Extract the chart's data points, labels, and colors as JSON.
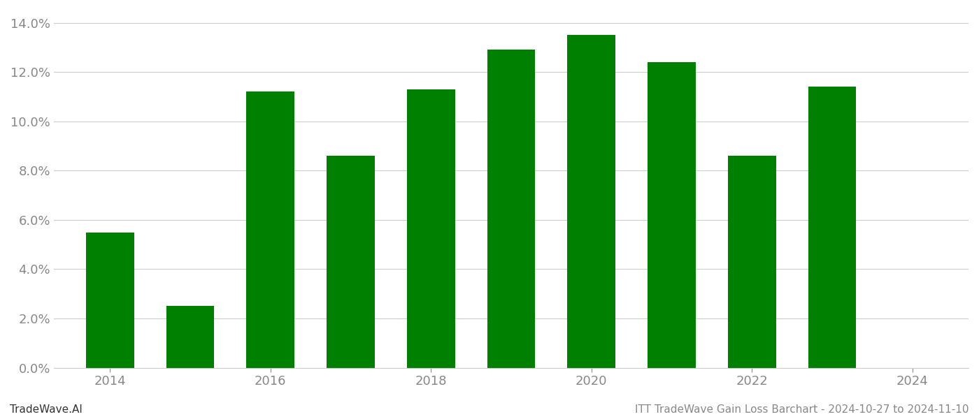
{
  "years": [
    2014,
    2015,
    2016,
    2017,
    2018,
    2019,
    2020,
    2021,
    2022,
    2023
  ],
  "values": [
    0.055,
    0.025,
    0.112,
    0.086,
    0.113,
    0.129,
    0.135,
    0.124,
    0.086,
    0.114
  ],
  "bar_color": "#008000",
  "background_color": "#ffffff",
  "ylim": [
    0,
    0.145
  ],
  "yticks": [
    0.0,
    0.02,
    0.04,
    0.06,
    0.08,
    0.1,
    0.12,
    0.14
  ],
  "xticks": [
    2014,
    2016,
    2018,
    2020,
    2022,
    2024
  ],
  "xlim": [
    2013.3,
    2024.7
  ],
  "grid_color": "#cccccc",
  "title": "ITT TradeWave Gain Loss Barchart - 2024-10-27 to 2024-11-10",
  "watermark": "TradeWave.AI",
  "title_fontsize": 11,
  "watermark_fontsize": 11,
  "tick_fontsize": 13,
  "axis_label_color": "#888888"
}
